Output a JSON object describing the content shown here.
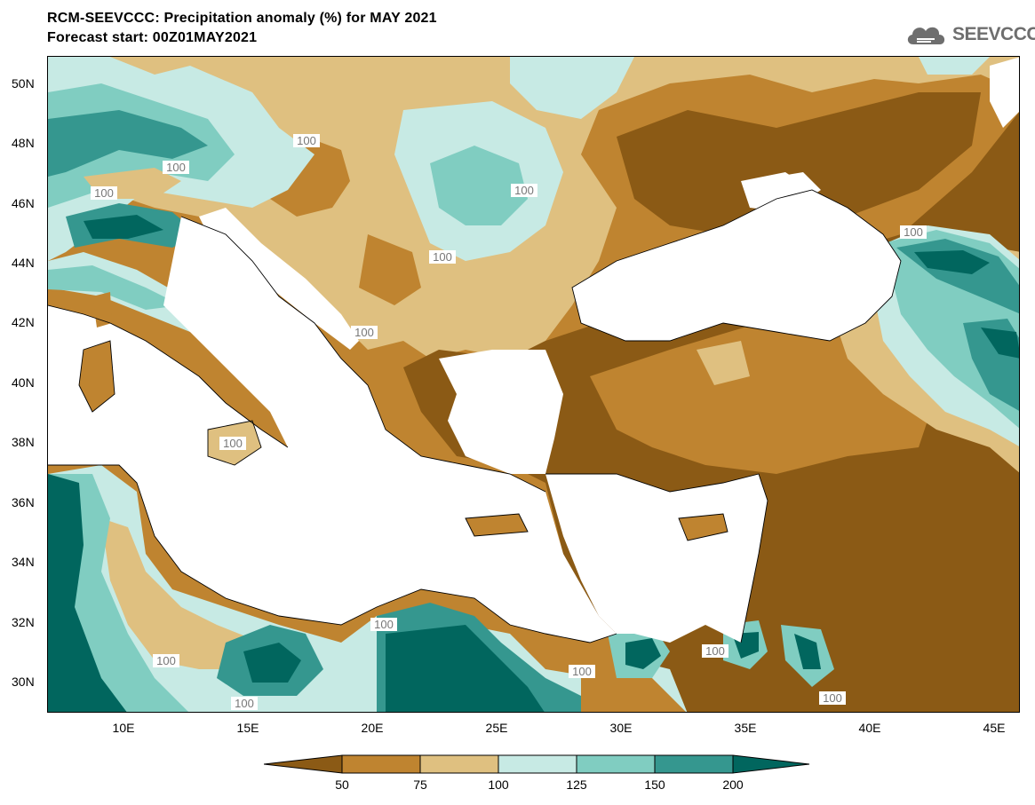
{
  "header": {
    "title": "RCM-SEEVCCC: Precipitation anomaly (%) for MAY 2021",
    "subtitle": "Forecast start: 00Z01MAY2021",
    "logo_text": "SEEVCCC",
    "logo_icon": "cloud-icon"
  },
  "map": {
    "lat_labels": [
      "50N",
      "48N",
      "46N",
      "44N",
      "42N",
      "40N",
      "38N",
      "36N",
      "34N",
      "32N",
      "30N"
    ],
    "lon_labels": [
      "10E",
      "15E",
      "20E",
      "25E",
      "30E",
      "35E",
      "40E",
      "45E"
    ],
    "contour_label": "100",
    "palette": {
      "lt50": "#8b5a15",
      "50_75": "#bf8430",
      "75_100": "#dfc080",
      "100_125": "#c7eae4",
      "125_150": "#80cdc1",
      "150_200": "#35978f",
      "gt200": "#01665e",
      "sea": "#ffffff"
    }
  },
  "colorbar": {
    "labels": [
      "50",
      "75",
      "100",
      "125",
      "150",
      "200"
    ]
  }
}
